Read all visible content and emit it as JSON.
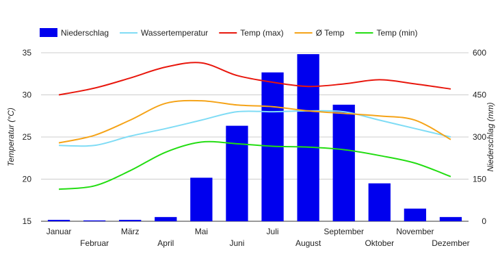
{
  "chart_data": {
    "type": "bar+line",
    "categories": [
      "Januar",
      "Februar",
      "März",
      "April",
      "Mai",
      "Juni",
      "Juli",
      "August",
      "September",
      "Oktober",
      "November",
      "Dezember"
    ],
    "bar_series": {
      "name": "Niederschlag",
      "axis": "right",
      "color": "#0000ee",
      "values": [
        5,
        3,
        5,
        15,
        155,
        340,
        530,
        595,
        415,
        135,
        45,
        15
      ]
    },
    "line_series": [
      {
        "name": "Wassertemperatur",
        "axis": "left",
        "color": "#7fdcf5",
        "values": [
          24.0,
          24.0,
          25.1,
          26.0,
          27.0,
          28.0,
          28.0,
          28.1,
          28.0,
          27.0,
          26.0,
          25.0
        ]
      },
      {
        "name": "Temp (max)",
        "axis": "left",
        "color": "#e8160c",
        "values": [
          30.0,
          30.8,
          32.0,
          33.3,
          33.8,
          32.3,
          31.5,
          31.0,
          31.3,
          31.8,
          31.3,
          30.7
        ]
      },
      {
        "name": "Ø Temp",
        "axis": "left",
        "color": "#f5a317",
        "values": [
          24.3,
          25.2,
          27.0,
          29.0,
          29.3,
          28.8,
          28.6,
          28.1,
          27.8,
          27.5,
          27.0,
          24.7
        ]
      },
      {
        "name": "Temp (min)",
        "axis": "left",
        "color": "#22dd11",
        "values": [
          18.8,
          19.2,
          21.0,
          23.2,
          24.4,
          24.2,
          23.9,
          23.8,
          23.5,
          22.8,
          21.9,
          20.3
        ]
      }
    ],
    "legend_order": [
      "Niederschlag",
      "Wassertemperatur",
      "Temp (max)",
      "Ø Temp",
      "Temp (min)"
    ],
    "legend_position": "top",
    "ylabel_left": "Temperatur (°C)",
    "ylabel_right": "Niederschlag (mm)",
    "ylim_left": [
      15,
      35
    ],
    "yticks_left": [
      "15",
      "20",
      "25",
      "30",
      "35"
    ],
    "ylim_right": [
      0,
      600
    ],
    "yticks_right": [
      "0",
      "150",
      "300",
      "450",
      "600"
    ],
    "grid": "horizontal"
  }
}
